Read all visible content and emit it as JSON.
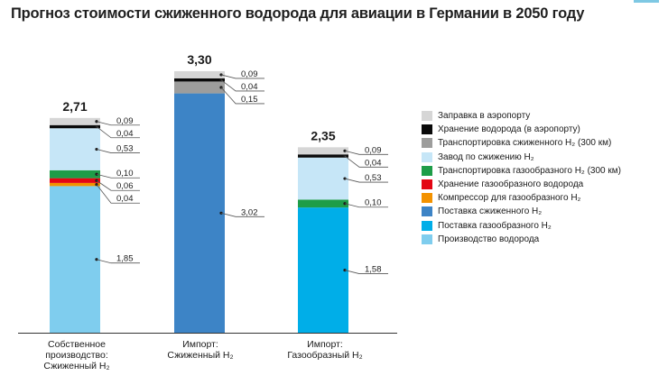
{
  "chart_data": {
    "type": "stacked-bar",
    "title": "Прогноз стоимости сжиженного водорода для авиации в Германии в 2050 году",
    "ylim": [
      0,
      3.55
    ],
    "categories": [
      {
        "lines": [
          "Собственное",
          "производство:",
          "Сжиженный H₂"
        ]
      },
      {
        "lines": [
          "Импорт:",
          "Сжиженный H₂"
        ]
      },
      {
        "lines": [
          "Импорт:",
          "Газообразный H₂"
        ]
      }
    ],
    "series": [
      {
        "name": "Производство водорода",
        "color": "#7fcdee",
        "values": [
          1.85,
          0,
          0
        ],
        "labels": [
          "1,85",
          "",
          ""
        ]
      },
      {
        "name": "Поставка газообразного H₂",
        "color": "#00aee8",
        "values": [
          0,
          0,
          1.58
        ],
        "labels": [
          "",
          "",
          "1,58"
        ]
      },
      {
        "name": "Поставка сжиженного H₂",
        "color": "#3d84c6",
        "values": [
          0,
          3.02,
          0
        ],
        "labels": [
          "",
          "3,02",
          ""
        ]
      },
      {
        "name": "Компрессор для газообразного H₂",
        "color": "#f39200",
        "values": [
          0.04,
          0,
          0
        ],
        "labels": [
          "0,04",
          "",
          ""
        ]
      },
      {
        "name": "Хранение газообразного водорода",
        "color": "#e30613",
        "values": [
          0.06,
          0,
          0
        ],
        "labels": [
          "0,06",
          "",
          ""
        ]
      },
      {
        "name": "Транспортировка газообразного H₂ (300 км)",
        "color": "#1e9d48",
        "values": [
          0.1,
          0,
          0.1
        ],
        "labels": [
          "0,10",
          "",
          "0,10"
        ]
      },
      {
        "name": "Завод по сжижению H₂",
        "color": "#c6e6f7",
        "values": [
          0.53,
          0,
          0.53
        ],
        "labels": [
          "0,53",
          "",
          "0,53"
        ]
      },
      {
        "name": "Транспортировка сжиженного H₂ (300 км)",
        "color": "#9d9d9c",
        "values": [
          0,
          0.15,
          0
        ],
        "labels": [
          "",
          "0,15",
          ""
        ]
      },
      {
        "name": "Хранение водорода (в аэропорту)",
        "color": "#0a0a0a",
        "values": [
          0.04,
          0.04,
          0.04
        ],
        "labels": [
          "0,04",
          "0,04",
          "0,04"
        ]
      },
      {
        "name": "Заправка в аэропорту",
        "color": "#d6d6d6",
        "values": [
          0.09,
          0.09,
          0.09
        ],
        "labels": [
          "0,09",
          "0,09",
          "0,09"
        ]
      }
    ],
    "totals": [
      "2,71",
      "3,30",
      "2,35"
    ],
    "legend": [
      {
        "name": "Заправка в аэропорту",
        "color": "#d6d6d6"
      },
      {
        "name": "Хранение водорода (в аэропорту)",
        "color": "#0a0a0a"
      },
      {
        "name": "Транспортировка сжиженного H₂ (300 км)",
        "color": "#9d9d9c"
      },
      {
        "name": "Завод по сжижению H₂",
        "color": "#c6e6f7"
      },
      {
        "name": "Транспортировка газообразного H₂ (300 км)",
        "color": "#1e9d48"
      },
      {
        "name": "Хранение газообразного водорода",
        "color": "#e30613"
      },
      {
        "name": "Компрессор для газообразного H₂",
        "color": "#f39200"
      },
      {
        "name": "Поставка сжиженного H₂",
        "color": "#3d84c6"
      },
      {
        "name": "Поставка газообразного H₂",
        "color": "#00aee8"
      },
      {
        "name": "Производство водорода",
        "color": "#7fcdee"
      }
    ],
    "legend_position": "right"
  }
}
